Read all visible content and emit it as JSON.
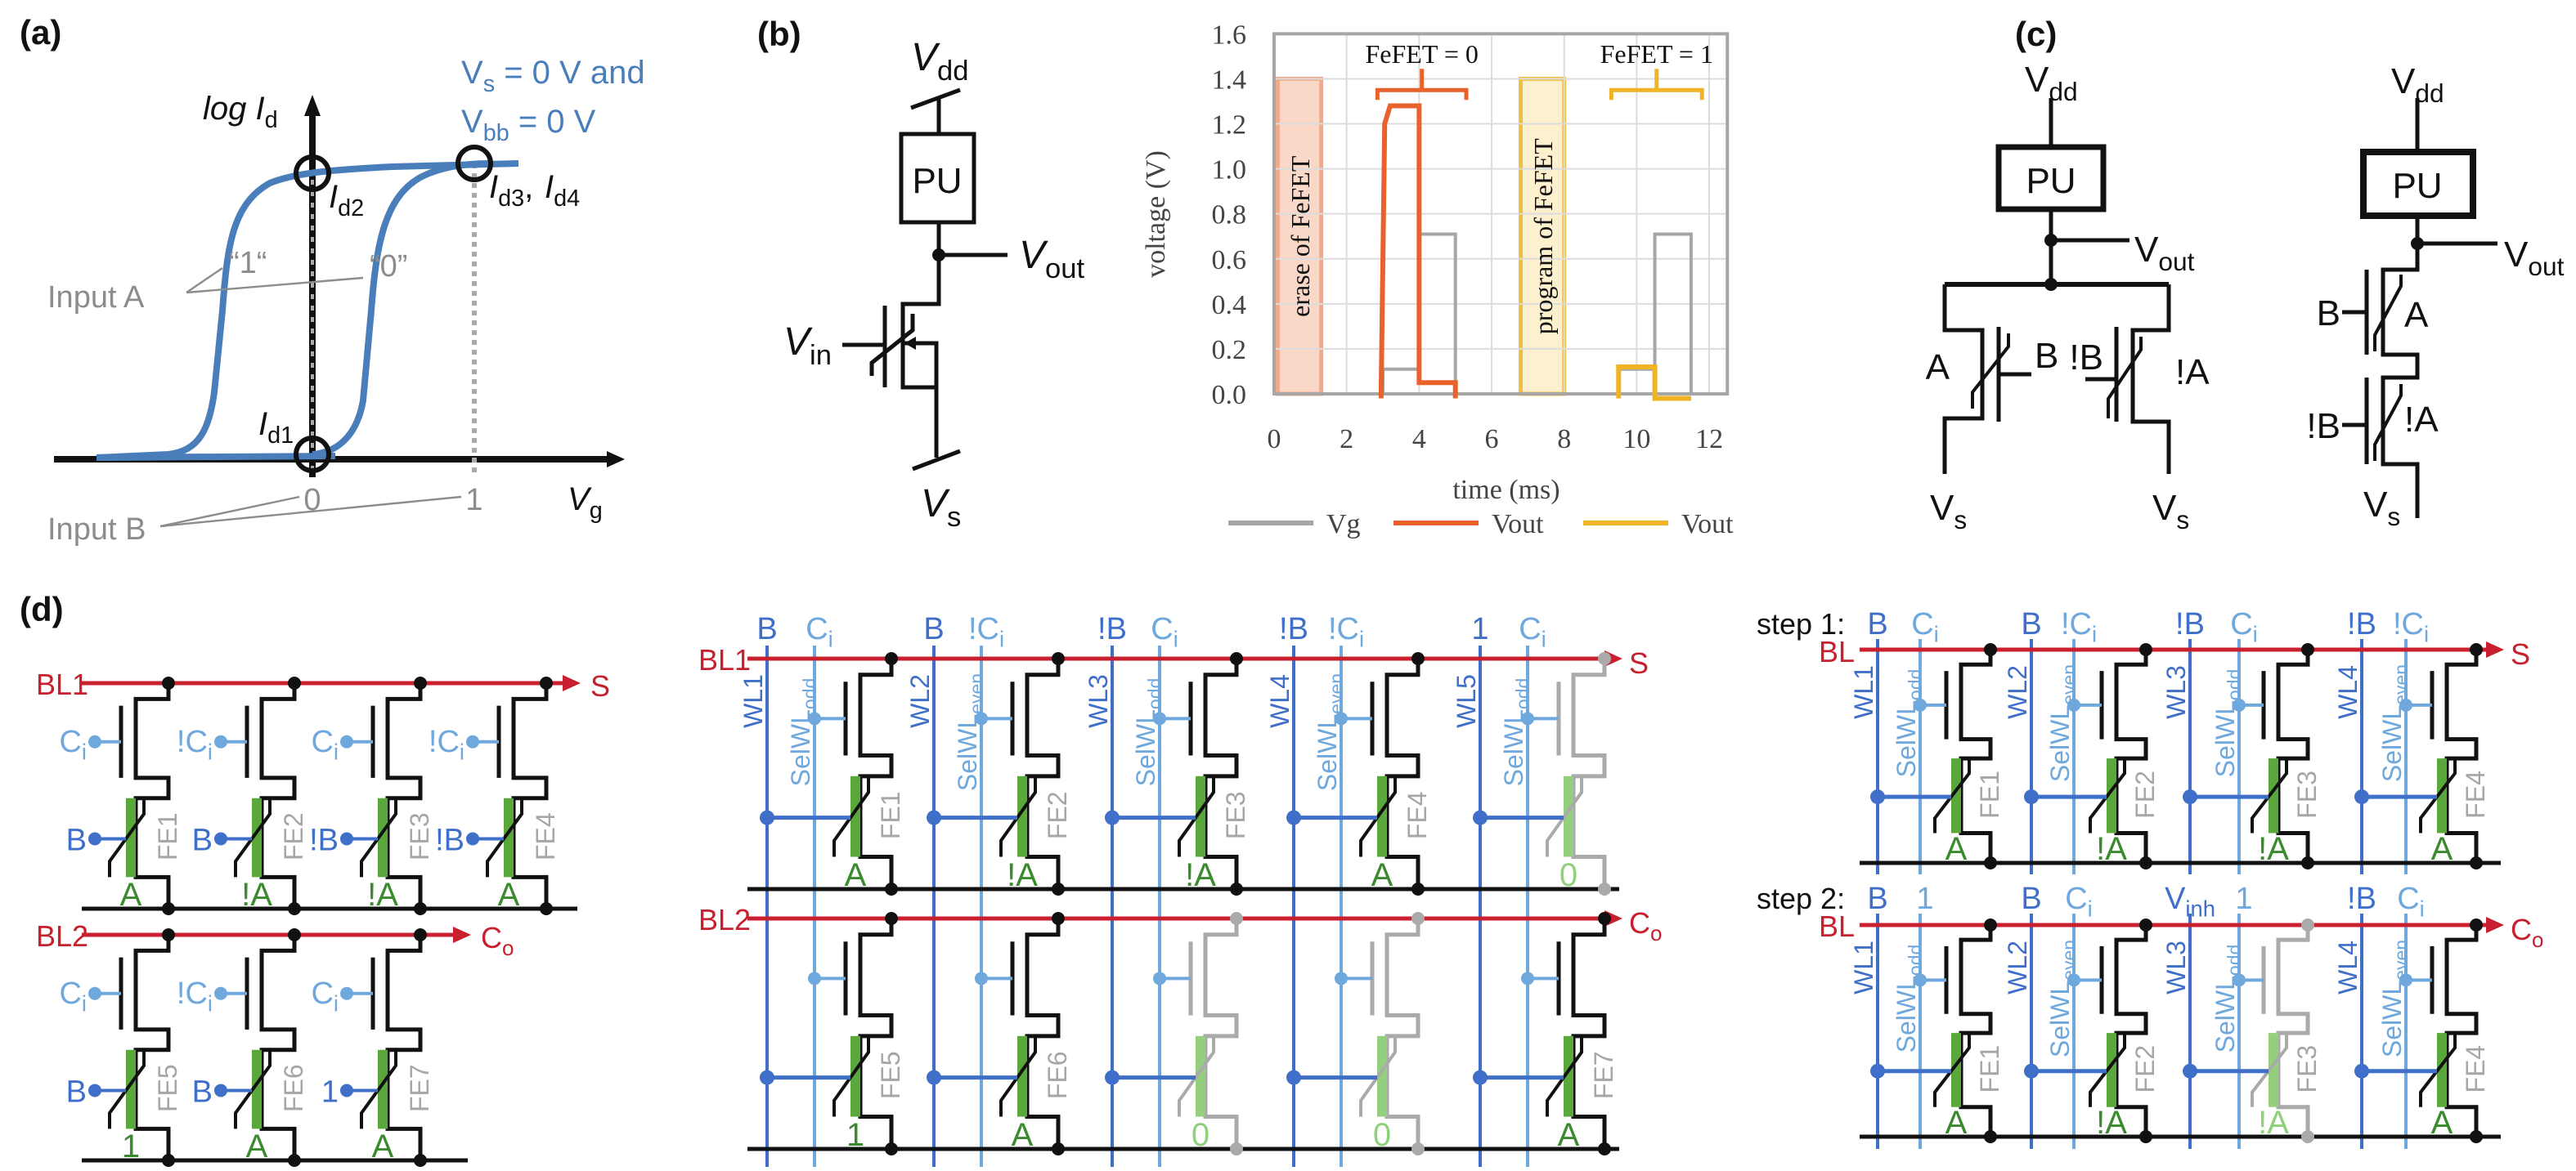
{
  "figure": {
    "panel_a": {
      "label": "(a)",
      "y_axis": {
        "t": "log I",
        "s": "d"
      },
      "x_axis": {
        "t": "V",
        "s": "g"
      },
      "condition_line1": {
        "t": "V",
        "s": "s",
        "r": " = 0 V and"
      },
      "condition_line2": {
        "t": "V",
        "s": "bb",
        "r": " = 0 V"
      },
      "id1": {
        "t": "I",
        "s": "d1"
      },
      "id2": {
        "t": "I",
        "s": "d2"
      },
      "id3": {
        "t": "I",
        "s": "d3",
        "r": ","
      },
      "id4": {
        "t": "I",
        "s": "d4"
      },
      "state_1": "“1“",
      "state_0": "“0”",
      "input_a": "Input A",
      "input_b": "Input B",
      "ticks": [
        "0",
        "1"
      ],
      "colors": {
        "curve": "#4a7ebb"
      }
    },
    "panel_b": {
      "label": "(b)",
      "vdd": {
        "t": "V",
        "s": "dd"
      },
      "pu": "PU",
      "vout": {
        "t": "V",
        "s": "out"
      },
      "vin": {
        "t": "V",
        "s": "in"
      },
      "vs": {
        "t": "V",
        "s": "s"
      }
    },
    "panel_c": {
      "label": "(c)",
      "left": {
        "vdd": {
          "t": "V",
          "s": "dd"
        },
        "pu": "PU",
        "vout": {
          "t": "V",
          "s": "out"
        },
        "t1_left": "A",
        "t1_gate": "B",
        "t2_gate": "!B",
        "t2_right": "!A",
        "vs1": {
          "t": "V",
          "s": "s"
        },
        "vs2": {
          "t": "V",
          "s": "s"
        }
      },
      "right": {
        "vdd": {
          "t": "V",
          "s": "dd"
        },
        "pu": "PU",
        "vout": {
          "t": "V",
          "s": "out"
        },
        "t1_gate": "B",
        "t1_right": "A",
        "t2_gate": "!B",
        "t2_right": "!A",
        "vs": {
          "t": "V",
          "s": "s"
        }
      }
    },
    "panel_d": {
      "label": "(d)",
      "left": {
        "bl1": "BL1",
        "bl2": "BL2",
        "out1": "S",
        "out2": {
          "t": "C",
          "s": "o"
        },
        "row1": [
          {
            "gate": {
              "t": "C",
              "s": "i"
            },
            "input": "B",
            "stored": "A",
            "fe": "FE1"
          },
          {
            "gate": {
              "t": "!C",
              "s": "i"
            },
            "input": "B",
            "stored": "!A",
            "fe": "FE2"
          },
          {
            "gate": {
              "t": "C",
              "s": "i"
            },
            "input": "!B",
            "stored": "!A",
            "fe": "FE3"
          },
          {
            "gate": {
              "t": "!C",
              "s": "i"
            },
            "input": "!B",
            "stored": "A",
            "fe": "FE4"
          }
        ],
        "row2": [
          {
            "gate": {
              "t": "C",
              "s": "i"
            },
            "input": "B",
            "stored": "1",
            "fe": "FE5"
          },
          {
            "gate": {
              "t": "!C",
              "s": "i"
            },
            "input": "B",
            "stored": "A",
            "fe": "FE6"
          },
          {
            "gate": {
              "t": "C",
              "s": "i"
            },
            "input": "1",
            "stored": "A",
            "fe": "FE7"
          }
        ]
      },
      "middle": {
        "bl1": "BL1",
        "bl2": "BL2",
        "out1": "S",
        "out2": {
          "t": "C",
          "s": "o"
        },
        "columns": [
          {
            "wl_input": "B",
            "sel_input": {
              "t": "C",
              "s": "i"
            },
            "wl": "WL1",
            "sel": {
              "t": "SelWL",
              "s": "odd"
            }
          },
          {
            "wl_input": "B",
            "sel_input": {
              "t": "!C",
              "s": "i"
            },
            "wl": "WL2",
            "sel": {
              "t": "SelWL",
              "s": "even"
            }
          },
          {
            "wl_input": "!B",
            "sel_input": {
              "t": "C",
              "s": "i"
            },
            "wl": "WL3",
            "sel": {
              "t": "SelWL",
              "s": "odd"
            }
          },
          {
            "wl_input": "!B",
            "sel_input": {
              "t": "!C",
              "s": "i"
            },
            "wl": "WL4",
            "sel": {
              "t": "SelWL",
              "s": "even"
            }
          },
          {
            "wl_input": "1",
            "sel_input": {
              "t": "C",
              "s": "i"
            },
            "wl": "WL5",
            "sel": {
              "t": "SelWL",
              "s": "odd"
            }
          }
        ],
        "row1": [
          {
            "stored": "A",
            "fe": "FE1",
            "active": true
          },
          {
            "stored": "!A",
            "fe": "FE2",
            "active": true
          },
          {
            "stored": "!A",
            "fe": "FE3",
            "active": true
          },
          {
            "stored": "A",
            "fe": "FE4",
            "active": true
          },
          {
            "stored": "0",
            "active": false
          }
        ],
        "row2": [
          {
            "stored": "1",
            "fe": "FE5",
            "active": true
          },
          {
            "stored": "A",
            "fe": "FE6",
            "active": true
          },
          {
            "stored": "0",
            "active": false
          },
          {
            "stored": "0",
            "active": false
          },
          {
            "stored": "A",
            "fe": "FE7",
            "active": true
          }
        ]
      },
      "right": {
        "step1": {
          "label": "step 1:",
          "bl": "BL",
          "out": "S",
          "columns": [
            {
              "wl_input": "B",
              "sel_input": {
                "t": "C",
                "s": "i"
              },
              "wl": "WL1",
              "sel": {
                "t": "SelWL",
                "s": "odd"
              }
            },
            {
              "wl_input": "B",
              "sel_input": {
                "t": "!C",
                "s": "i"
              },
              "wl": "WL2",
              "sel": {
                "t": "SelWL",
                "s": "even"
              }
            },
            {
              "wl_input": "!B",
              "sel_input": {
                "t": "C",
                "s": "i"
              },
              "wl": "WL3",
              "sel": {
                "t": "SelWL",
                "s": "odd"
              }
            },
            {
              "wl_input": "!B",
              "sel_input": {
                "t": "!C",
                "s": "i"
              },
              "wl": "WL4",
              "sel": {
                "t": "SelWL",
                "s": "even"
              }
            }
          ],
          "cells": [
            {
              "stored": "A",
              "fe": "FE1",
              "active": true
            },
            {
              "stored": "!A",
              "fe": "FE2",
              "active": true
            },
            {
              "stored": "!A",
              "fe": "FE3",
              "active": true
            },
            {
              "stored": "A",
              "fe": "FE4",
              "active": true
            }
          ]
        },
        "step2": {
          "label": "step 2:",
          "bl": "BL",
          "out": {
            "t": "C",
            "s": "o"
          },
          "columns": [
            {
              "wl_input": "B",
              "sel_input": "1",
              "wl": "WL1",
              "sel": {
                "t": "SelWL",
                "s": "odd"
              }
            },
            {
              "wl_input": "B",
              "sel_input": {
                "t": "C",
                "s": "i"
              },
              "wl": "WL2",
              "sel": {
                "t": "SelWL",
                "s": "even"
              }
            },
            {
              "wl_input": {
                "t": "V",
                "s": "inh"
              },
              "sel_input": "1",
              "wl": "WL3",
              "sel": {
                "t": "SelWL",
                "s": "odd"
              }
            },
            {
              "wl_input": "!B",
              "sel_input": {
                "t": "C",
                "s": "i"
              },
              "wl": "WL4",
              "sel": {
                "t": "SelWL",
                "s": "even"
              }
            }
          ],
          "cells": [
            {
              "stored": "A",
              "fe": "FE1",
              "active": true
            },
            {
              "stored": "!A",
              "fe": "FE2",
              "active": true
            },
            {
              "stored": "!A",
              "fe": "FE3",
              "active": false
            },
            {
              "stored": "A",
              "fe": "FE4",
              "active": true
            }
          ]
        }
      },
      "colors": {
        "bitline": "#c8202e",
        "wordline": "#3f6fc8",
        "select": "#6fa8dc",
        "ferro": "#5aa83c",
        "ferro_off": "#93cf7c",
        "inactive": "#aaaaaa"
      }
    }
  },
  "chart_data": {
    "type": "line",
    "xlabel": "time (ms)",
    "ylabel": "voltage  (V)",
    "xlim": [
      0,
      12.5
    ],
    "ylim": [
      0,
      1.6
    ],
    "xticks": [
      "0",
      "2",
      "4",
      "6",
      "8",
      "10",
      "12"
    ],
    "xtick_values": [
      0,
      2,
      4,
      6,
      8,
      10,
      12
    ],
    "yticks": [
      "0.0",
      "0.2",
      "0.4",
      "0.6",
      "0.8",
      "1.0",
      "1.2",
      "1.4",
      "1.6"
    ],
    "ytick_values": [
      0,
      0.2,
      0.4,
      0.6,
      0.8,
      1.0,
      1.2,
      1.4,
      1.6
    ],
    "grid": true,
    "legend_position": "bottom",
    "series": [
      {
        "name": "Vg",
        "color": "#a6a6a6",
        "segments": [
          [
            [
              1.3,
              0
            ],
            [
              3.0,
              0
            ],
            [
              3.0,
              0.11
            ],
            [
              4.0,
              0.11
            ],
            [
              4.0,
              0.71
            ],
            [
              5.0,
              0.71
            ],
            [
              5.0,
              0
            ],
            [
              6.5,
              0
            ]
          ],
          [
            [
              8.0,
              0
            ],
            [
              9.5,
              0
            ],
            [
              9.5,
              0.11
            ],
            [
              10.5,
              0.11
            ],
            [
              10.5,
              0.71
            ],
            [
              11.5,
              0.71
            ],
            [
              11.5,
              0
            ],
            [
              12.5,
              0
            ]
          ]
        ]
      },
      {
        "name": "Vout",
        "color": "#e8622c",
        "segments": [
          [
            [
              2.95,
              -0.02
            ],
            [
              3.05,
              1.2
            ],
            [
              3.2,
              1.28
            ],
            [
              4.0,
              1.28
            ],
            [
              4.0,
              0.05
            ],
            [
              5.0,
              0.05
            ],
            [
              5.0,
              -0.02
            ]
          ]
        ]
      },
      {
        "name": "Vout",
        "color": "#f0b323",
        "segments": [
          [
            [
              9.5,
              -0.02
            ],
            [
              9.5,
              0.12
            ],
            [
              10.5,
              0.12
            ],
            [
              10.5,
              -0.02
            ],
            [
              11.5,
              -0.02
            ]
          ]
        ]
      }
    ],
    "regions": [
      {
        "label": "erase of FeFET",
        "x": [
          0.1,
          1.3
        ],
        "y": [
          0,
          1.4
        ],
        "fill": "#f9d8c8",
        "stroke": "#f2a98a"
      },
      {
        "label": "program of FeFET",
        "x": [
          6.8,
          8.0
        ],
        "y": [
          0,
          1.4
        ],
        "fill": "#fdf0cf",
        "stroke": "#f0c040"
      }
    ],
    "annotations": [
      {
        "text": "FeFET = 0",
        "bracket_x": [
          2.85,
          5.3
        ],
        "y": 1.35,
        "color": "#e8622c"
      },
      {
        "text": "FeFET = 1",
        "bracket_x": [
          9.3,
          11.8
        ],
        "y": 1.35,
        "color": "#f0b323"
      }
    ]
  }
}
